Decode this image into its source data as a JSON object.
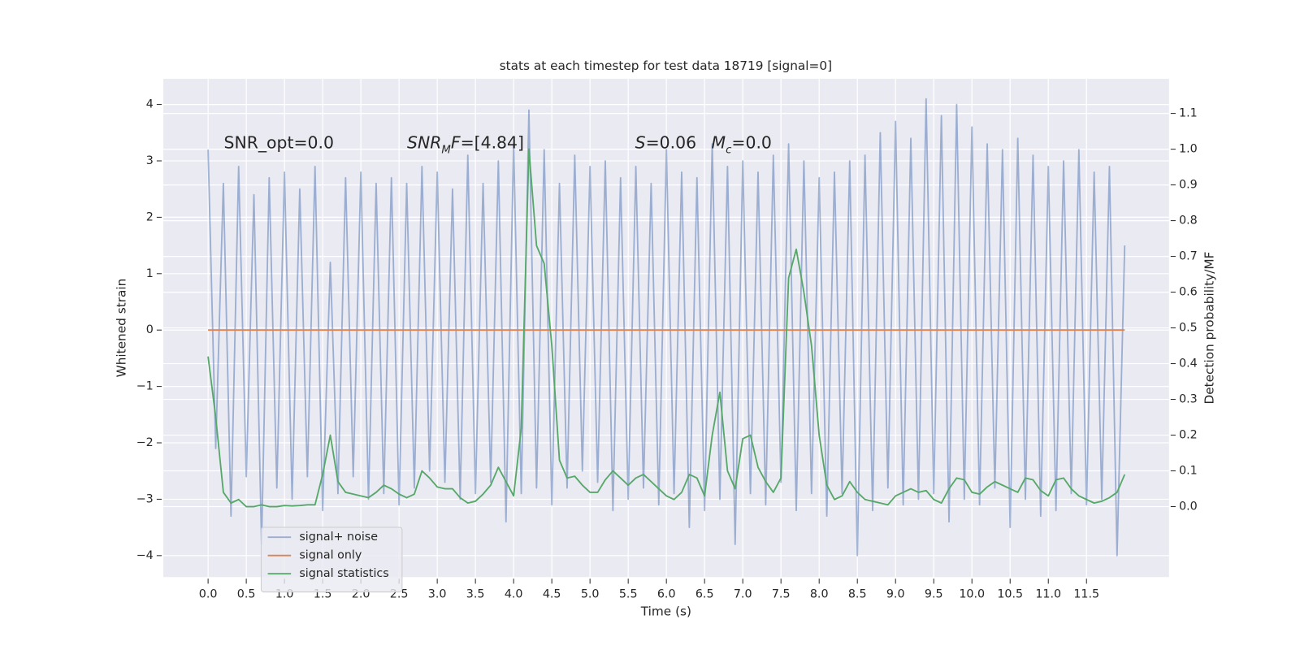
{
  "chart_data": {
    "type": "line",
    "title": "stats at each timestep for test data 18719 [signal=0]",
    "xlabel": "Time (s)",
    "ylabel": "Whitened strain",
    "y2label": "Detection probability/MF",
    "x": [
      0,
      0.1,
      0.2,
      0.3,
      0.4,
      0.5,
      0.6,
      0.7,
      0.8,
      0.9,
      1,
      1.1,
      1.2,
      1.3,
      1.4,
      1.5,
      1.6,
      1.7,
      1.8,
      1.9,
      2,
      2.1,
      2.2,
      2.3,
      2.4,
      2.5,
      2.6,
      2.7,
      2.8,
      2.9,
      3,
      3.1,
      3.2,
      3.3,
      3.4,
      3.5,
      3.6,
      3.7,
      3.8,
      3.9,
      4,
      4.1,
      4.2,
      4.3,
      4.4,
      4.5,
      4.6,
      4.7,
      4.8,
      4.9,
      5,
      5.1,
      5.2,
      5.3,
      5.4,
      5.5,
      5.6,
      5.7,
      5.8,
      5.9,
      6,
      6.1,
      6.2,
      6.3,
      6.4,
      6.5,
      6.6,
      6.7,
      6.8,
      6.9,
      7,
      7.1,
      7.2,
      7.3,
      7.4,
      7.5,
      7.6,
      7.7,
      7.8,
      7.9,
      8,
      8.1,
      8.2,
      8.3,
      8.4,
      8.5,
      8.6,
      8.7,
      8.8,
      8.9,
      9,
      9.1,
      9.2,
      9.3,
      9.4,
      9.5,
      9.6,
      9.7,
      9.8,
      9.9,
      10,
      10.1,
      10.2,
      10.3,
      10.4,
      10.5,
      10.6,
      10.7,
      10.8,
      10.9,
      11,
      11.1,
      11.2,
      11.3,
      11.4,
      11.5,
      11.6,
      11.7,
      11.8,
      11.9,
      12
    ],
    "series": [
      {
        "name": "signal+ noise",
        "color": "#4c72b0",
        "opacity": 0.5,
        "values": [
          3.2,
          -2.1,
          2.6,
          -3.3,
          2.9,
          -2.6,
          2.4,
          -3.8,
          2.7,
          -2.8,
          2.8,
          -3.0,
          2.5,
          -2.6,
          2.9,
          -3.2,
          1.2,
          -2.9,
          2.7,
          -2.6,
          2.8,
          -3.0,
          2.6,
          -2.9,
          2.7,
          -3.1,
          2.6,
          -2.8,
          2.9,
          -2.5,
          2.8,
          -2.7,
          2.5,
          -3.0,
          3.1,
          -2.9,
          2.6,
          -2.7,
          3.0,
          -3.4,
          3.3,
          -2.9,
          3.9,
          -2.8,
          3.2,
          -3.1,
          2.6,
          -2.8,
          3.1,
          -2.5,
          2.9,
          -2.7,
          3.0,
          -3.2,
          2.7,
          -3.0,
          2.9,
          -2.8,
          2.6,
          -3.1,
          3.2,
          -2.9,
          2.8,
          -3.5,
          2.7,
          -3.2,
          3.3,
          -3.0,
          2.9,
          -3.8,
          3.0,
          -2.9,
          2.8,
          -3.1,
          3.1,
          -2.7,
          3.3,
          -3.2,
          3.0,
          -2.9,
          2.7,
          -3.3,
          2.8,
          -2.9,
          3.0,
          -4.0,
          3.1,
          -3.2,
          3.5,
          -2.8,
          3.7,
          -3.1,
          3.4,
          -3.0,
          4.1,
          -2.9,
          3.8,
          -3.4,
          4.0,
          -3.0,
          3.6,
          -3.1,
          3.3,
          -2.8,
          3.2,
          -3.5,
          3.4,
          -3.0,
          3.1,
          -3.3,
          2.9,
          -3.2,
          3.0,
          -2.9,
          3.2,
          -3.1,
          2.8,
          -3.0,
          2.9,
          -4.0,
          1.5
        ]
      },
      {
        "name": "signal only",
        "color": "#dd8452",
        "opacity": 1,
        "values": [
          0,
          0,
          0,
          0,
          0,
          0,
          0,
          0,
          0,
          0,
          0,
          0,
          0,
          0,
          0,
          0,
          0,
          0,
          0,
          0,
          0,
          0,
          0,
          0,
          0,
          0,
          0,
          0,
          0,
          0,
          0,
          0,
          0,
          0,
          0,
          0,
          0,
          0,
          0,
          0,
          0,
          0,
          0,
          0,
          0,
          0,
          0,
          0,
          0,
          0,
          0,
          0,
          0,
          0,
          0,
          0,
          0,
          0,
          0,
          0,
          0,
          0,
          0,
          0,
          0,
          0,
          0,
          0,
          0,
          0,
          0,
          0,
          0,
          0,
          0,
          0,
          0,
          0,
          0,
          0,
          0,
          0,
          0,
          0,
          0,
          0,
          0,
          0,
          0,
          0,
          0,
          0,
          0,
          0,
          0,
          0,
          0,
          0,
          0,
          0,
          0,
          0,
          0,
          0,
          0,
          0,
          0,
          0,
          0,
          0,
          0,
          0,
          0,
          0,
          0,
          0,
          0,
          0,
          0,
          0,
          0
        ]
      },
      {
        "name": "signal statistics",
        "color": "#55a868",
        "opacity": 1,
        "axis": "y2",
        "values": [
          0.42,
          0.25,
          0.04,
          0.01,
          0.02,
          0.0,
          0.0,
          0.005,
          0.0,
          0.0,
          0.003,
          0.002,
          0.003,
          0.005,
          0.005,
          0.09,
          0.2,
          0.07,
          0.04,
          0.035,
          0.03,
          0.025,
          0.04,
          0.06,
          0.05,
          0.035,
          0.025,
          0.035,
          0.1,
          0.08,
          0.055,
          0.05,
          0.05,
          0.025,
          0.01,
          0.015,
          0.035,
          0.06,
          0.11,
          0.07,
          0.03,
          0.22,
          1.0,
          0.73,
          0.68,
          0.45,
          0.13,
          0.08,
          0.085,
          0.06,
          0.04,
          0.04,
          0.075,
          0.1,
          0.08,
          0.06,
          0.08,
          0.09,
          0.07,
          0.05,
          0.03,
          0.02,
          0.04,
          0.09,
          0.08,
          0.03,
          0.2,
          0.32,
          0.1,
          0.05,
          0.19,
          0.2,
          0.11,
          0.07,
          0.04,
          0.08,
          0.64,
          0.72,
          0.6,
          0.45,
          0.2,
          0.06,
          0.02,
          0.03,
          0.07,
          0.04,
          0.02,
          0.015,
          0.01,
          0.005,
          0.03,
          0.04,
          0.05,
          0.04,
          0.045,
          0.02,
          0.01,
          0.05,
          0.08,
          0.075,
          0.04,
          0.035,
          0.055,
          0.07,
          0.06,
          0.05,
          0.04,
          0.08,
          0.075,
          0.045,
          0.03,
          0.075,
          0.08,
          0.05,
          0.03,
          0.02,
          0.01,
          0.015,
          0.025,
          0.04,
          0.09
        ]
      }
    ],
    "xlim": [
      -0.586,
      12.58
    ],
    "xticks": [
      {
        "value": 0,
        "label": "0.0"
      },
      0.5,
      {
        "value": 1,
        "label": "1.0"
      },
      1.5,
      {
        "value": 2,
        "label": "2.0"
      },
      2.5,
      {
        "value": 3,
        "label": "3.0"
      },
      3.5,
      {
        "value": 4,
        "label": "4.0"
      },
      4.5,
      {
        "value": 5,
        "label": "5.0"
      },
      5.5,
      {
        "value": 6,
        "label": "6.0"
      },
      6.5,
      {
        "value": 7,
        "label": "7.0"
      },
      7.5,
      {
        "value": 8,
        "label": "8.0"
      },
      8.5,
      {
        "value": 9,
        "label": "9.0"
      },
      9.5,
      {
        "value": 10,
        "label": "10.0"
      },
      10.5,
      {
        "value": 11,
        "label": "11.0"
      },
      11.5
    ],
    "ylim": [
      -4.38,
      4.456
    ],
    "yticks": [
      {
        "value": -4,
        "label": "−4"
      },
      {
        "value": -3,
        "label": "−3"
      },
      {
        "value": -2,
        "label": "−2"
      },
      {
        "value": -1,
        "label": "−1"
      },
      0,
      1,
      2,
      3,
      4
    ],
    "y2lim": [
      -0.197,
      1.197
    ],
    "y2ticks": [
      {
        "value": 0,
        "label": "0.0"
      },
      0.1,
      0.2,
      0.3,
      0.4,
      0.5,
      0.6,
      0.7,
      0.8,
      0.9,
      {
        "value": 1,
        "label": "1.0"
      },
      1.1
    ],
    "grid": true,
    "background": "#eaeaf2",
    "legend": "lower left",
    "annotations": [
      [
        {
          "text": "SNR_opt=0.0"
        }
      ],
      [
        {
          "text": "SNR",
          "style": "italic"
        },
        {
          "text": "M",
          "style": "sub"
        },
        {
          "text": "F",
          "style": "italic"
        },
        {
          "text": "=[4.84]"
        }
      ],
      [
        {
          "text": "S",
          "style": "italic"
        },
        {
          "text": "=0.06"
        }
      ],
      [
        {
          "text": "M",
          "style": "italic"
        },
        {
          "text": "c",
          "style": "sub"
        },
        {
          "text": "=0.0"
        }
      ]
    ]
  }
}
